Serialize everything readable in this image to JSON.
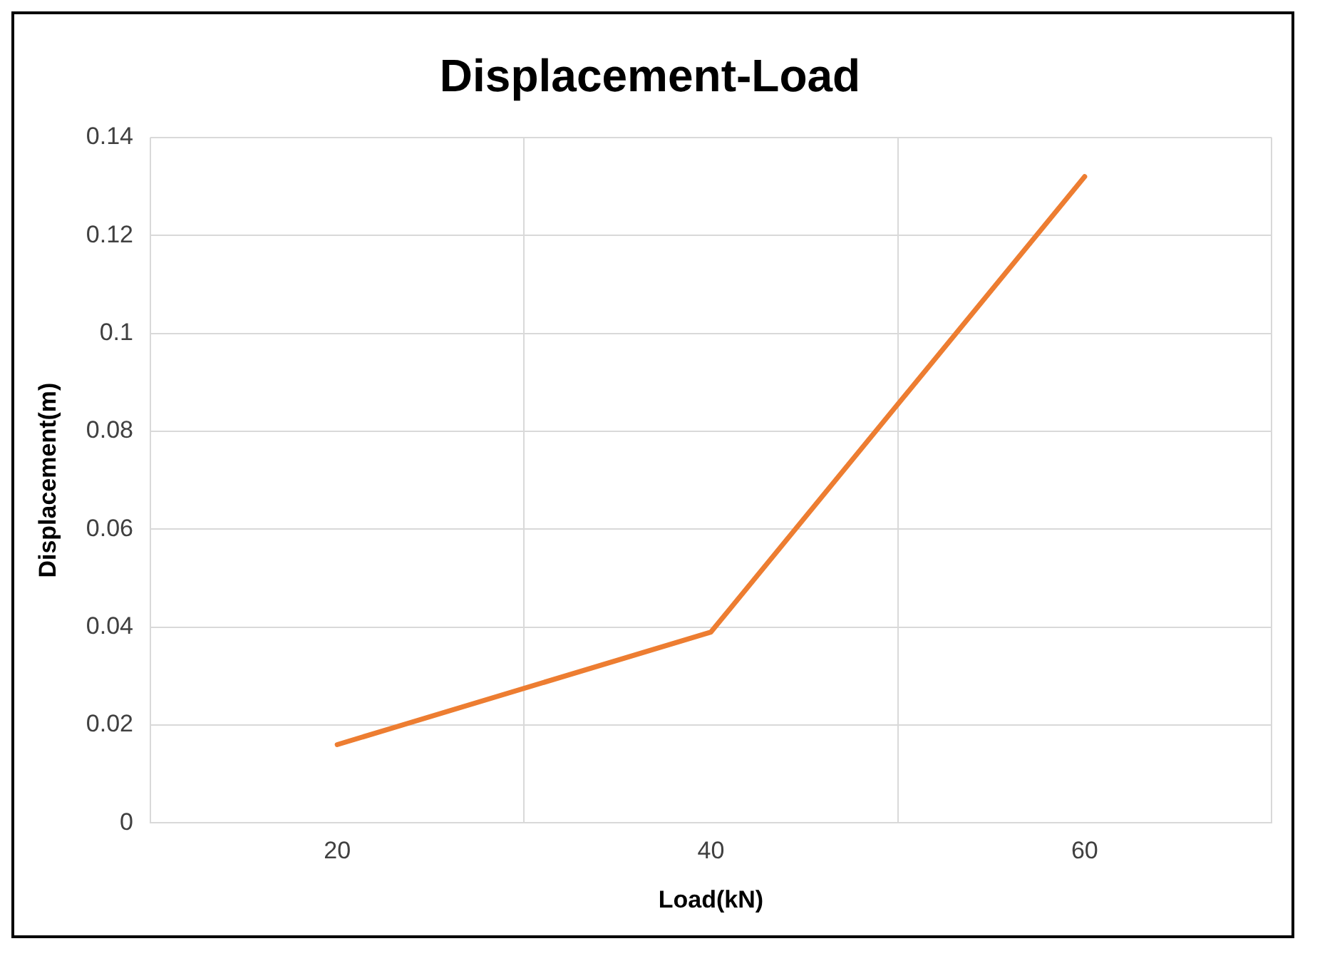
{
  "chart_data": {
    "type": "line",
    "title": "Displacement-Load",
    "xlabel": "Load(kN)",
    "ylabel": "Displacement(m)",
    "categories": [
      "20",
      "40",
      "60"
    ],
    "series": [
      {
        "color": "#ed7d31",
        "values": [
          0.016,
          0.039,
          0.132
        ]
      }
    ],
    "ylim": [
      0,
      0.14
    ],
    "yticks": [
      0,
      0.02,
      0.04,
      0.06,
      0.08,
      0.1,
      0.12,
      0.14
    ],
    "grid": true,
    "legend": false,
    "marker": "none",
    "line_style": "solid"
  }
}
